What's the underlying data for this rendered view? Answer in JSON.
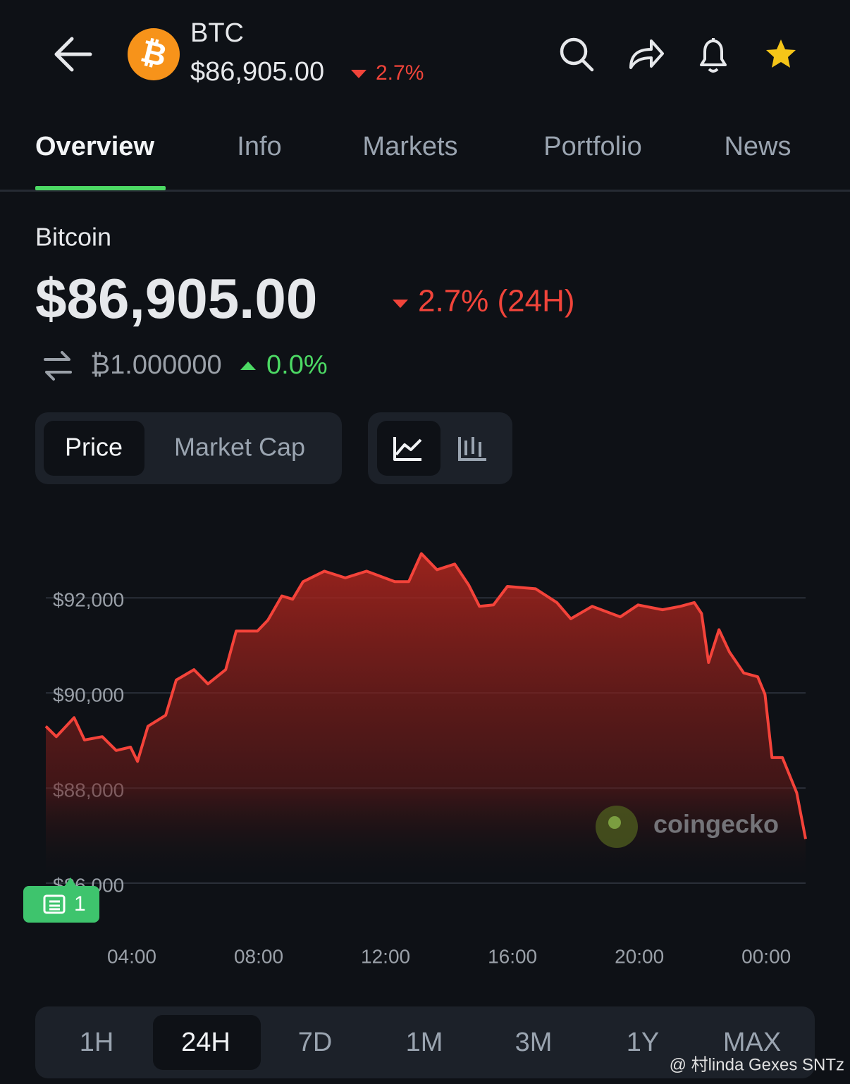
{
  "header": {
    "logo": "₿",
    "symbol": "BTC",
    "price": "$86,905.00",
    "change": "2.7%"
  },
  "tabs": [
    "Overview",
    "Info",
    "Markets",
    "Portfolio",
    "News"
  ],
  "coin": {
    "name": "Bitcoin",
    "price": "$86,905.00",
    "change": "2.7% (24H)",
    "btc_price": "₿1.000000",
    "btc_change": "0.0%"
  },
  "chart_toggle": [
    "Price",
    "Market Cap"
  ],
  "chart_data": {
    "type": "line",
    "x": [
      1.29,
      1.62,
      2.18,
      2.51,
      3.07,
      3.51,
      3.96,
      4.18,
      4.51,
      5.07,
      5.4,
      5.96,
      6.4,
      6.96,
      7.29,
      7.96,
      8.29,
      8.73,
      9.07,
      9.4,
      10.07,
      10.73,
      11.4,
      12.29,
      12.73,
      13.13,
      13.62,
      14.18,
      14.62,
      14.96,
      15.4,
      15.84,
      16.73,
      17.4,
      17.84,
      18.51,
      19.4,
      19.96,
      20.73,
      21.29,
      21.73,
      21.96,
      22.18,
      22.51,
      22.84,
      23.29,
      23.73,
      23.96,
      24.18,
      24.51,
      24.96,
      25.24
    ],
    "series": [
      {
        "name": "Price",
        "color": "#f4433a",
        "values": [
          89300,
          89080,
          89480,
          89010,
          89080,
          88790,
          88860,
          88560,
          89300,
          89530,
          90270,
          90490,
          90190,
          90490,
          91300,
          91300,
          91530,
          92040,
          91970,
          92340,
          92560,
          92420,
          92560,
          92340,
          92340,
          92930,
          92590,
          92710,
          92270,
          91820,
          91850,
          92240,
          92190,
          91900,
          91560,
          91820,
          91600,
          91850,
          91750,
          91820,
          91900,
          91670,
          90640,
          91330,
          90860,
          90420,
          90340,
          89970,
          88640,
          88640,
          87900,
          86930
        ]
      }
    ],
    "xlim": [
      1.29,
      25.24
    ],
    "ylim": [
      86000,
      93500
    ],
    "xticks": [
      {
        "value": 4,
        "label": "04:00"
      },
      {
        "value": 8,
        "label": "08:00"
      },
      {
        "value": 12,
        "label": "12:00"
      },
      {
        "value": 16,
        "label": "16:00"
      },
      {
        "value": 20,
        "label": "20:00"
      },
      {
        "value": 24,
        "label": "00:00"
      }
    ],
    "yticks": [
      {
        "value": 86000,
        "label": "$86,000"
      },
      {
        "value": 88000,
        "label": "$88,000"
      },
      {
        "value": 90000,
        "label": "$90,000"
      },
      {
        "value": 92000,
        "label": "$92,000"
      }
    ],
    "grid": true
  },
  "chart_watermark": "coingecko",
  "news_badge": "1",
  "time_ranges": [
    "1H",
    "24H",
    "7D",
    "1M",
    "3M",
    "1Y",
    "MAX"
  ],
  "overlay_text": "@ 村linda Gexes SNTz"
}
